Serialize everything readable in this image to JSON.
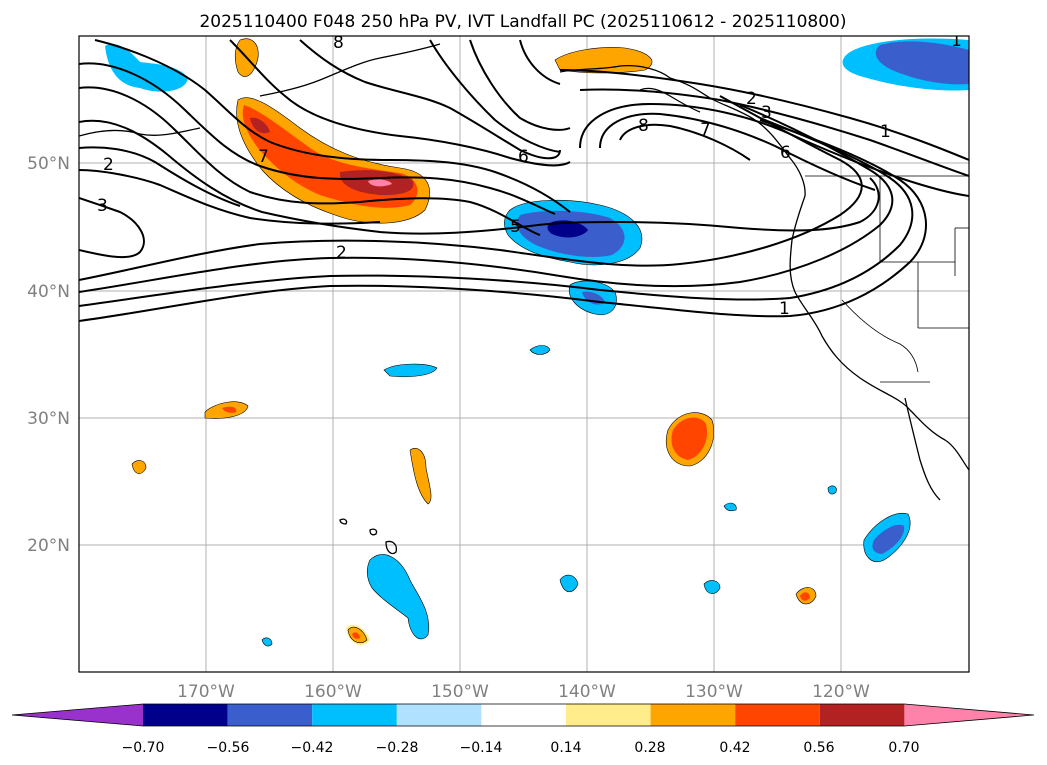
{
  "title": "2025110400 F048 250 hPa PV, IVT Landfall PC (2025110612 - 2025110800)",
  "map": {
    "lon_range": [
      -180,
      -110
    ],
    "lat_range": [
      10,
      60
    ],
    "lon_ticks": [
      {
        "value": -170,
        "label": "170°W"
      },
      {
        "value": -160,
        "label": "160°W"
      },
      {
        "value": -150,
        "label": "150°W"
      },
      {
        "value": -140,
        "label": "140°W"
      },
      {
        "value": -130,
        "label": "130°W"
      },
      {
        "value": -120,
        "label": "120°W"
      }
    ],
    "lat_ticks": [
      {
        "value": 20,
        "label": "20°N"
      },
      {
        "value": 30,
        "label": "30°N"
      },
      {
        "value": 40,
        "label": "40°N"
      },
      {
        "value": 50,
        "label": "50°N"
      }
    ],
    "grid": true,
    "contour_color": "#000000"
  },
  "colorbar": {
    "levels": [
      "−0.70",
      "−0.56",
      "−0.42",
      "−0.28",
      "−0.14",
      "0.14",
      "0.28",
      "0.42",
      "0.56",
      "0.70"
    ],
    "colors": [
      "#9932cc",
      "#00008b",
      "#3a5fcd",
      "#00bfff",
      "#b0e2ff",
      "#ffffff",
      "#ffec8b",
      "#ffa500",
      "#ff4500",
      "#b22222",
      "#ff82ab"
    ],
    "extend": "both"
  },
  "contour_labels": [
    "2",
    "3",
    "7",
    "8",
    "6",
    "5",
    "2",
    "1",
    "8",
    "2",
    "3",
    "6",
    "7",
    "1",
    "1"
  ]
}
